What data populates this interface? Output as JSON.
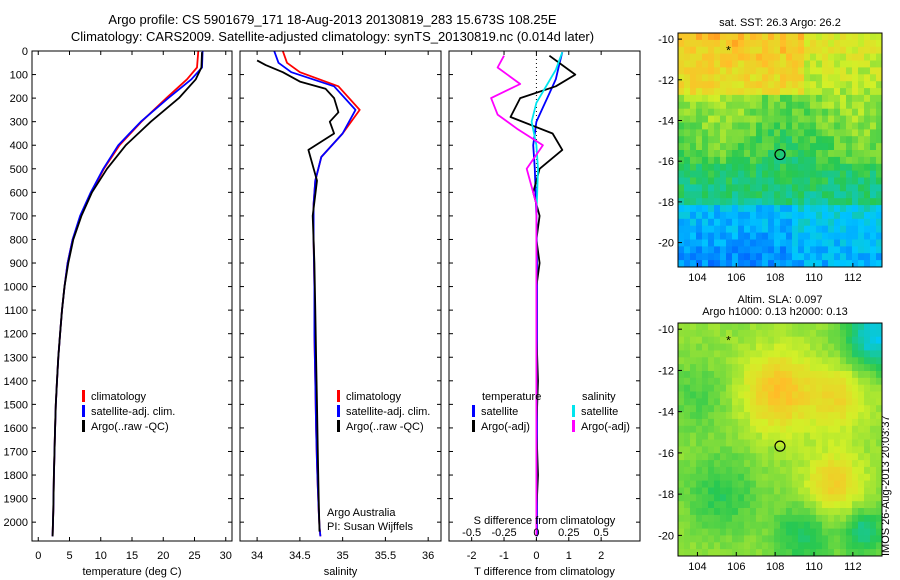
{
  "title_line1": "Argo profile: CS 5901679_171 18-Aug-2013 20130819_283 15.673S 108.25E",
  "title_line2": "Climatology: CARS2009. Satellite-adjusted climatology: synTS_20130819.nc (0.014d later)",
  "colors": {
    "climatology": "#ff0000",
    "satellite": "#0000ff",
    "argo": "#000000",
    "sal_satellite": "#00e5ee",
    "sal_argo": "#ff00ff"
  },
  "depth_axis": {
    "ticks": [
      0,
      100,
      200,
      300,
      400,
      500,
      600,
      700,
      800,
      900,
      1000,
      1100,
      1200,
      1300,
      1400,
      1500,
      1600,
      1700,
      1800,
      1900,
      2000
    ],
    "range": [
      0,
      2080
    ]
  },
  "legend_temp": {
    "items": [
      {
        "label": "climatology",
        "color": "#ff0000"
      },
      {
        "label": "satellite-adj. clim.",
        "color": "#0000ff"
      },
      {
        "label": "Argo(..raw -QC)",
        "color": "#000000"
      }
    ]
  },
  "legend_sal": {
    "items": [
      {
        "label": "climatology",
        "color": "#ff0000"
      },
      {
        "label": "satellite-adj. clim.",
        "color": "#0000ff"
      },
      {
        "label": "Argo(..raw -QC)",
        "color": "#000000"
      }
    ]
  },
  "legend_diff": {
    "temp_header": "temperature",
    "sal_header": "salinity",
    "temp_items": [
      {
        "label": "satellite",
        "color": "#0000ff"
      },
      {
        "label": "Argo(-adj)",
        "color": "#000000"
      }
    ],
    "sal_items": [
      {
        "label": "satellite",
        "color": "#00e5ee"
      },
      {
        "label": "Argo(-adj)",
        "color": "#ff00ff"
      }
    ]
  },
  "argo_note": {
    "line1": "Argo Australia",
    "line2": "PI: Susan Wijffels"
  },
  "stamp": "IMOS 26-Aug-2013 20:03:37",
  "map_sst": {
    "title": "sat. SST: 26.3 Argo: 26.2",
    "lon_ticks": [
      "104",
      "106",
      "108",
      "110",
      "112"
    ],
    "lat_ticks": [
      "-10",
      "-12",
      "-14",
      "-16",
      "-18",
      "-20"
    ]
  },
  "map_sla": {
    "title_line1": "Altim. SLA: 0.097",
    "title_line2": "Argo h1000: 0.13 h2000: 0.13",
    "lon_ticks": [
      "104",
      "106",
      "108",
      "110",
      "112"
    ],
    "lat_ticks": [
      "-10",
      "-12",
      "-14",
      "-16",
      "-18",
      "-20"
    ]
  },
  "chart_data": [
    {
      "type": "line",
      "xlabel": "temperature (deg C)",
      "ylabel": "",
      "xlim": [
        -1,
        31
      ],
      "ylim": [
        2080,
        0
      ],
      "xticks": [
        0,
        5,
        10,
        15,
        20,
        25,
        30
      ],
      "series": [
        {
          "name": "climatology",
          "color": "#ff0000",
          "x": [
            25.6,
            25.4,
            23.8,
            20.5,
            16.5,
            13,
            10.5,
            8.5,
            6.8,
            5.5,
            4.7,
            4.2,
            3.8,
            3.5,
            3.2,
            3.0,
            2.8,
            2.7,
            2.6,
            2.5,
            2.4,
            2.3
          ],
          "y": [
            0,
            70,
            120,
            200,
            300,
            400,
            500,
            600,
            700,
            800,
            900,
            1000,
            1100,
            1200,
            1300,
            1400,
            1500,
            1600,
            1700,
            1800,
            1950,
            2060
          ]
        },
        {
          "name": "satellite-adj. clim.",
          "color": "#0000ff",
          "x": [
            26.3,
            26.2,
            24.5,
            20.8,
            16.4,
            12.8,
            10.4,
            8.4,
            6.7,
            5.5,
            4.7,
            4.2,
            3.8,
            3.5,
            3.2,
            3.0,
            2.8,
            2.7,
            2.6,
            2.5,
            2.4,
            2.3
          ],
          "y": [
            0,
            70,
            120,
            200,
            300,
            400,
            500,
            600,
            700,
            800,
            900,
            1000,
            1100,
            1200,
            1300,
            1400,
            1500,
            1600,
            1700,
            1800,
            1950,
            2060
          ]
        },
        {
          "name": "Argo(..raw -QC)",
          "color": "#000000",
          "x": [
            26.2,
            26.1,
            25.2,
            22.5,
            18.0,
            14.0,
            11.0,
            8.6,
            6.9,
            5.6,
            4.8,
            4.2,
            3.8,
            3.5,
            3.2,
            3.0,
            2.8,
            2.7,
            2.6,
            2.5,
            2.4,
            2.3
          ],
          "y": [
            5,
            70,
            120,
            200,
            300,
            400,
            500,
            600,
            700,
            800,
            900,
            1000,
            1100,
            1200,
            1300,
            1400,
            1500,
            1600,
            1700,
            1800,
            1950,
            2060
          ]
        }
      ]
    },
    {
      "type": "line",
      "xlabel": "salinity",
      "ylabel": "",
      "xlim": [
        33.8,
        36.15
      ],
      "xticks": [
        34,
        34.5,
        35,
        35.5,
        36
      ],
      "series": [
        {
          "name": "climatology",
          "color": "#ff0000",
          "x": [
            34.3,
            34.35,
            34.5,
            34.95,
            35.2,
            35.0,
            34.75,
            34.68,
            34.66,
            34.66,
            34.67,
            34.67,
            34.68,
            34.69,
            34.7,
            34.71,
            34.72,
            34.73,
            34.74
          ],
          "y": [
            0,
            50,
            90,
            150,
            250,
            350,
            450,
            550,
            650,
            800,
            1000,
            1200,
            1400,
            1600,
            1750,
            1850,
            1950,
            2020,
            2060
          ]
        },
        {
          "name": "satellite-adj. clim.",
          "color": "#0000ff",
          "x": [
            34.2,
            34.25,
            34.4,
            34.9,
            35.15,
            35.0,
            34.75,
            34.68,
            34.66,
            34.66,
            34.67,
            34.67,
            34.68,
            34.69,
            34.7,
            34.71,
            34.72,
            34.73,
            34.74
          ],
          "y": [
            0,
            50,
            90,
            150,
            250,
            350,
            450,
            550,
            650,
            800,
            1000,
            1200,
            1400,
            1600,
            1750,
            1850,
            1950,
            2020,
            2060
          ]
        },
        {
          "name": "Argo(..raw -QC)",
          "color": "#000000",
          "x": [
            34.0,
            34.1,
            34.3,
            34.5,
            34.8,
            34.9,
            34.95,
            34.85,
            34.9,
            34.6,
            34.7,
            34.65,
            34.67,
            34.68,
            34.69,
            34.7,
            34.71,
            34.72,
            34.73
          ],
          "y": [
            40,
            60,
            90,
            130,
            160,
            200,
            260,
            300,
            350,
            420,
            550,
            700,
            900,
            1100,
            1300,
            1500,
            1700,
            1900,
            2040
          ]
        }
      ]
    },
    {
      "type": "line",
      "xlabel": "T difference from climatology",
      "xlabel2": "S difference from climatology",
      "xlim": [
        -2.7,
        3.2
      ],
      "xticks": [
        -2,
        -1,
        0,
        1,
        2
      ],
      "xticks2": [
        {
          "label": "-0.5",
          "x": -2
        },
        {
          "label": "-0.25",
          "x": -1
        },
        {
          "label": "0",
          "x": 0
        },
        {
          "label": "0.25",
          "x": 1
        },
        {
          "label": "0.5",
          "x": 2
        }
      ],
      "series": [
        {
          "name": "T satellite",
          "color": "#0000ff",
          "x": [
            0.8,
            0.7,
            0.6,
            0.4,
            0.2,
            0.0,
            -0.1,
            -0.05,
            0.0,
            0.02,
            0.02,
            0.02,
            0.02
          ],
          "y": [
            5,
            60,
            120,
            180,
            240,
            300,
            400,
            500,
            700,
            900,
            1200,
            1600,
            2060
          ]
        },
        {
          "name": "T Argo(-adj)",
          "color": "#000000",
          "x": [
            0.4,
            0.8,
            1.2,
            0.6,
            -0.5,
            -0.8,
            0.5,
            0.8,
            0.1,
            -0.1,
            0.1,
            0.0,
            0.1,
            0.0,
            0.0,
            0.05,
            0.0,
            0.05,
            0.0,
            0.0
          ],
          "y": [
            20,
            60,
            100,
            150,
            200,
            280,
            350,
            420,
            500,
            600,
            700,
            800,
            900,
            1000,
            1200,
            1400,
            1600,
            1800,
            1950,
            2060
          ]
        },
        {
          "name": "S satellite",
          "color": "#00e5ee",
          "x": [
            0.8,
            0.6,
            0.3,
            0.0,
            -0.15,
            0.0,
            0.05,
            0.0,
            0.0,
            0.0,
            0.0
          ],
          "y": [
            5,
            80,
            150,
            220,
            300,
            400,
            500,
            700,
            1000,
            1500,
            2060
          ]
        },
        {
          "name": "S Argo(-adj)",
          "color": "#ff00ff",
          "x": [
            -1.0,
            -1.2,
            -0.5,
            -1.4,
            -1.2,
            -0.6,
            0.2,
            -0.3,
            0.0,
            0.0,
            0.0,
            0.0
          ],
          "y": [
            20,
            70,
            140,
            200,
            270,
            330,
            400,
            500,
            650,
            900,
            1400,
            2060
          ]
        }
      ]
    }
  ]
}
